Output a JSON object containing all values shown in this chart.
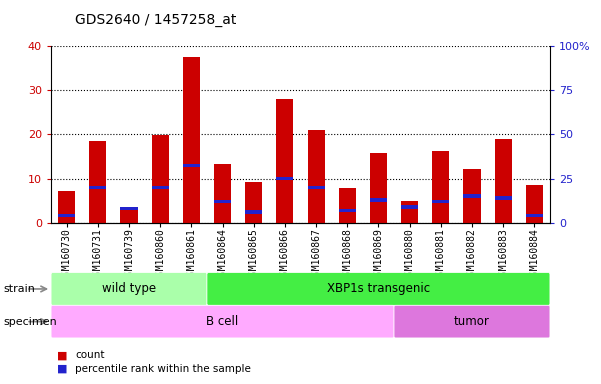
{
  "title": "GDS2640 / 1457258_at",
  "samples": [
    "GSM160730",
    "GSM160731",
    "GSM160739",
    "GSM160860",
    "GSM160861",
    "GSM160864",
    "GSM160865",
    "GSM160866",
    "GSM160867",
    "GSM160868",
    "GSM160869",
    "GSM160880",
    "GSM160881",
    "GSM160882",
    "GSM160883",
    "GSM160884"
  ],
  "count": [
    7.2,
    18.5,
    2.8,
    19.8,
    37.5,
    13.2,
    9.2,
    28.0,
    21.0,
    7.8,
    15.8,
    5.0,
    16.2,
    12.2,
    19.0,
    8.5
  ],
  "percentile": [
    4.0,
    20.0,
    8.0,
    20.0,
    32.5,
    12.0,
    6.0,
    25.0,
    20.0,
    7.0,
    13.0,
    9.0,
    12.0,
    15.0,
    14.0,
    4.0
  ],
  "bar_width": 0.55,
  "ylim_left": [
    0,
    40
  ],
  "ylim_right": [
    0,
    100
  ],
  "yticks_left": [
    0,
    10,
    20,
    30,
    40
  ],
  "yticks_right": [
    0,
    25,
    50,
    75,
    100
  ],
  "yticklabels_right": [
    "0",
    "25",
    "50",
    "75",
    "100%"
  ],
  "color_count": "#cc0000",
  "color_percentile": "#2222cc",
  "bg_color": "#d8d8d8",
  "plot_bg": "#ffffff",
  "strain_groups": [
    {
      "label": "wild type",
      "start": 0,
      "end": 5,
      "color": "#aaffaa"
    },
    {
      "label": "XBP1s transgenic",
      "start": 5,
      "end": 16,
      "color": "#44ee44"
    }
  ],
  "specimen_groups": [
    {
      "label": "B cell",
      "start": 0,
      "end": 11,
      "color": "#ffaaff"
    },
    {
      "label": "tumor",
      "start": 11,
      "end": 16,
      "color": "#dd77dd"
    }
  ],
  "strain_label": "strain",
  "specimen_label": "specimen",
  "legend_count": "count",
  "legend_percentile": "percentile rank within the sample",
  "title_fontsize": 10,
  "tick_fontsize": 7,
  "label_fontsize": 8,
  "group_label_fontsize": 8.5
}
